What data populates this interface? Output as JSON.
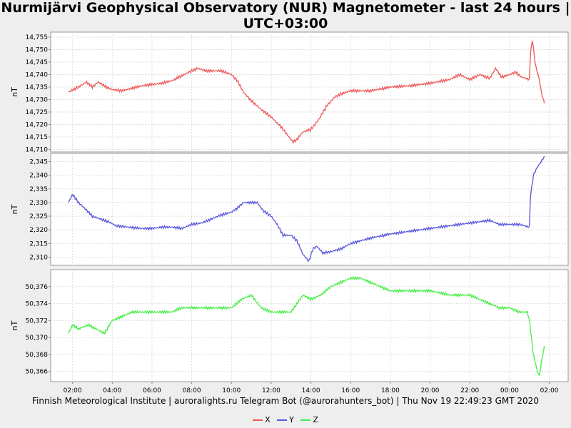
{
  "chart_data": {
    "type": "line",
    "title": "Nurmijärvi Geophysical Observatory (NUR) Magnetometer - last 24 hours | UTC+03:00",
    "footer": "Finnish Meteorological Institute | auroralights.ru Telegram Bot (@aurorahunters_bot) | Thu Nov 19 22:49:23 GMT 2020",
    "x_ticks": [
      "02:00",
      "04:00",
      "06:00",
      "08:00",
      "10:00",
      "12:00",
      "14:00",
      "16:00",
      "18:00",
      "20:00",
      "22:00",
      "00:00",
      "02:00"
    ],
    "x_tick_hours": [
      2,
      4,
      6,
      8,
      10,
      12,
      14,
      16,
      18,
      20,
      22,
      24,
      26
    ],
    "xlim": [
      0.9,
      26.95
    ],
    "grid": true,
    "legend_position": "bottom-center",
    "panels": [
      {
        "name": "X",
        "color": "#ee5555",
        "ylabel": "nT",
        "ylim": [
          14709,
          14757
        ],
        "y_ticks": [
          "14,710",
          "14,715",
          "14,720",
          "14,725",
          "14,730",
          "14,735",
          "14,740",
          "14,745",
          "14,750",
          "14,755"
        ],
        "y_tick_values": [
          14710,
          14715,
          14720,
          14725,
          14730,
          14735,
          14740,
          14745,
          14750,
          14755
        ],
        "x": [
          1.8,
          2.3,
          2.7,
          3.0,
          3.3,
          3.7,
          4.0,
          4.5,
          5.0,
          5.5,
          6.0,
          6.5,
          7.0,
          7.5,
          8.0,
          8.3,
          8.7,
          9.0,
          9.5,
          10.0,
          10.3,
          10.6,
          11.0,
          11.5,
          12.0,
          12.5,
          12.8,
          13.1,
          13.3,
          13.6,
          14.0,
          14.4,
          14.8,
          15.2,
          15.6,
          16.0,
          16.5,
          17.0,
          18.0,
          19.0,
          20.0,
          21.0,
          21.5,
          22.0,
          22.5,
          23.0,
          23.3,
          23.6,
          24.0,
          24.3,
          24.6,
          25.0,
          25.05,
          25.15,
          25.3,
          25.5,
          25.6,
          25.75
        ],
        "y": [
          14733,
          14735,
          14737,
          14735,
          14737,
          14735,
          14734,
          14733.5,
          14734.5,
          14735.5,
          14736,
          14736.5,
          14737.5,
          14739.5,
          14741.5,
          14742.5,
          14741.5,
          14741.5,
          14741.5,
          14740,
          14737.5,
          14733,
          14729.5,
          14726,
          14723,
          14719,
          14716,
          14713,
          14714,
          14717,
          14718,
          14722,
          14727.5,
          14731,
          14732.5,
          14733.5,
          14733.5,
          14733.5,
          14735,
          14735.5,
          14736.5,
          14738,
          14740,
          14738,
          14740,
          14738.5,
          14742.5,
          14739,
          14740,
          14741,
          14739,
          14738,
          14748,
          14754,
          14744,
          14738,
          14733,
          14728.5
        ]
      },
      {
        "name": "Y",
        "color": "#5555dd",
        "ylabel": "nT",
        "ylim": [
          2307,
          2348
        ],
        "y_ticks": [
          "2,310",
          "2,315",
          "2,320",
          "2,325",
          "2,330",
          "2,335",
          "2,340",
          "2,345"
        ],
        "y_tick_values": [
          2310,
          2315,
          2320,
          2325,
          2330,
          2335,
          2340,
          2345
        ],
        "x": [
          1.8,
          2.0,
          2.3,
          2.6,
          3.0,
          3.4,
          3.8,
          4.2,
          4.8,
          5.5,
          6.0,
          6.5,
          7.0,
          7.5,
          8.0,
          8.5,
          9.0,
          9.5,
          10.0,
          10.3,
          10.6,
          11.0,
          11.3,
          11.6,
          12.0,
          12.3,
          12.6,
          13.0,
          13.3,
          13.6,
          13.9,
          14.1,
          14.3,
          14.6,
          15.0,
          15.5,
          16.0,
          16.5,
          17.0,
          18.0,
          19.0,
          20.0,
          21.0,
          22.0,
          22.5,
          23.0,
          23.5,
          24.0,
          24.5,
          25.0,
          25.05,
          25.2,
          25.4,
          25.6,
          25.75
        ],
        "y": [
          2330,
          2333,
          2330,
          2328,
          2325,
          2324,
          2323,
          2321.5,
          2321,
          2320.5,
          2320.5,
          2321,
          2321,
          2320.5,
          2322,
          2322.5,
          2324,
          2325.5,
          2326.5,
          2328,
          2330,
          2330,
          2330,
          2327,
          2325,
          2322,
          2318,
          2318,
          2316,
          2311,
          2308.5,
          2313,
          2314,
          2311.5,
          2312,
          2313,
          2315,
          2316,
          2317,
          2318.5,
          2319.5,
          2320.5,
          2321.5,
          2322.5,
          2323,
          2323.5,
          2322,
          2322,
          2322,
          2321,
          2332,
          2340,
          2343,
          2345,
          2347
        ]
      },
      {
        "name": "Z",
        "color": "#44ee44",
        "ylabel": "nT",
        "ylim": [
          50364.8,
          50378
        ],
        "y_ticks": [
          "50,366",
          "50,368",
          "50,370",
          "50,372",
          "50,374",
          "50,376"
        ],
        "y_tick_values": [
          50366,
          50368,
          50370,
          50372,
          50374,
          50376
        ],
        "x": [
          1.8,
          2.0,
          2.3,
          2.8,
          3.2,
          3.6,
          4.0,
          4.5,
          5.0,
          5.5,
          6.0,
          6.5,
          7.0,
          7.5,
          8.0,
          8.5,
          9.0,
          9.5,
          10.0,
          10.5,
          11.0,
          11.5,
          12.0,
          12.5,
          13.0,
          13.3,
          13.6,
          14.0,
          14.5,
          15.0,
          15.5,
          16.0,
          16.5,
          17.0,
          17.5,
          18.0,
          19.0,
          20.0,
          21.0,
          22.0,
          22.5,
          23.0,
          23.5,
          24.0,
          24.5,
          24.9,
          25.0,
          25.1,
          25.2,
          25.4,
          25.5,
          25.6,
          25.75
        ],
        "y": [
          50370.5,
          50371.5,
          50371,
          50371.5,
          50371,
          50370.5,
          50372,
          50372.5,
          50373,
          50373,
          50373,
          50373,
          50373,
          50373.5,
          50373.5,
          50373.5,
          50373.5,
          50373.5,
          50373.5,
          50374.5,
          50375,
          50373.5,
          50373,
          50373,
          50373,
          50374,
          50375,
          50374.5,
          50375,
          50376,
          50376.5,
          50377,
          50377,
          50376.5,
          50376,
          50375.5,
          50375.5,
          50375.5,
          50375,
          50375,
          50374.5,
          50374,
          50373.5,
          50373.5,
          50373,
          50373,
          50372,
          50370,
          50368,
          50366,
          50365.5,
          50367,
          50369
        ]
      }
    ]
  },
  "legend": [
    {
      "name": "X",
      "color": "#ee5555"
    },
    {
      "name": "Y",
      "color": "#5555dd"
    },
    {
      "name": "Z",
      "color": "#44ee44"
    }
  ]
}
